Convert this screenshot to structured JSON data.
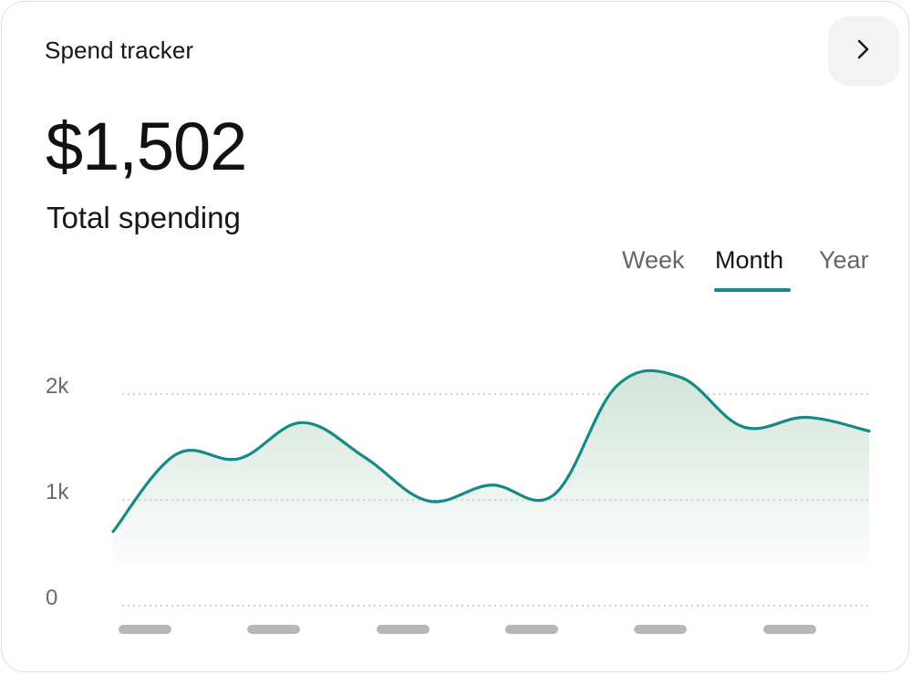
{
  "widget": {
    "title": "Spend tracker",
    "open_icon": "chevron-right-icon",
    "total_amount": "$1,502",
    "total_label": "Total spending"
  },
  "tabs": [
    {
      "label": "Week",
      "active": false
    },
    {
      "label": "Month",
      "active": true
    },
    {
      "label": "Year",
      "active": false
    }
  ],
  "colors": {
    "accent": "#168a86",
    "area_fill": "#cfe3d6",
    "gridline": "#cfcfcf",
    "placeholder_tick": "#b7b7b7"
  },
  "chart_data": {
    "type": "area",
    "y_ticks": [
      "2k",
      "1k",
      "0"
    ],
    "ylim": [
      0,
      2000
    ],
    "grid": true,
    "x_labels_placeholder_count": 6,
    "x": [
      0,
      1,
      2,
      3,
      4,
      5,
      6,
      7,
      8,
      9,
      10,
      11,
      12
    ],
    "values": [
      700,
      1430,
      1390,
      1730,
      1400,
      990,
      1140,
      1050,
      2080,
      2160,
      1690,
      1780,
      1650
    ]
  }
}
